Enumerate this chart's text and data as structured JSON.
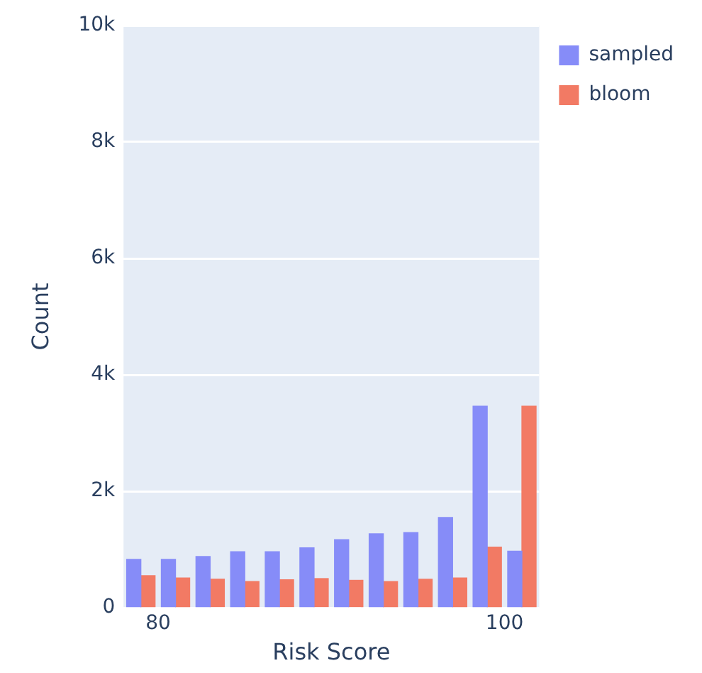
{
  "chart_data": {
    "type": "histogram",
    "xlabel": "Risk Score",
    "ylabel": "Count",
    "bins": [
      78,
      80,
      82,
      84,
      86,
      88,
      90,
      92,
      94,
      96,
      98,
      100,
      102
    ],
    "series": [
      {
        "name": "sampled",
        "color": "#868cf8",
        "values": [
          830,
          830,
          880,
          960,
          960,
          1030,
          1170,
          1270,
          1290,
          1550,
          3460,
          970
        ]
      },
      {
        "name": "bloom",
        "color": "#f27a64",
        "values": [
          550,
          510,
          490,
          450,
          480,
          500,
          470,
          450,
          490,
          510,
          1040,
          3460
        ]
      }
    ],
    "xlim": [
      78,
      102
    ],
    "xticks": [
      80,
      100
    ],
    "ylim": [
      0,
      10000
    ],
    "yticks": [
      {
        "value": 0,
        "label": "0"
      },
      {
        "value": 2000,
        "label": "2k"
      },
      {
        "value": 4000,
        "label": "4k"
      },
      {
        "value": 6000,
        "label": "6k"
      },
      {
        "value": 8000,
        "label": "8k"
      },
      {
        "value": 10000,
        "label": "10k"
      }
    ],
    "grid": "y",
    "legend": "top right"
  }
}
